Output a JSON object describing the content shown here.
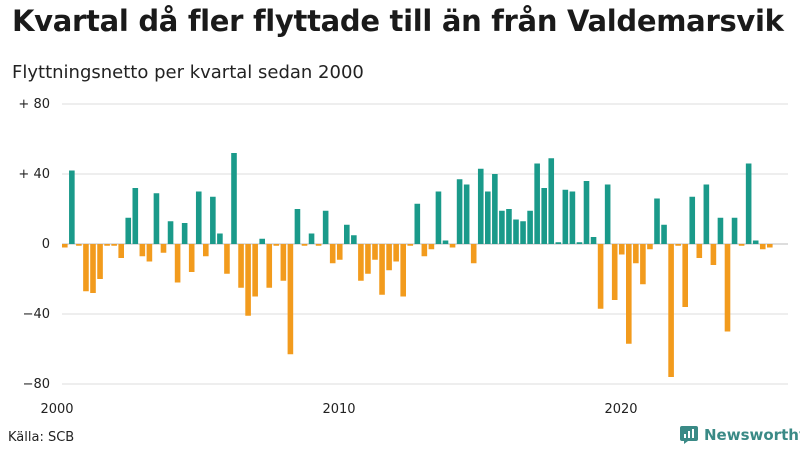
{
  "title": "Kvartal då fler flyttade till än från Valdemarsvik",
  "subtitle": "Flyttningsnetto per kvartal sedan 2000",
  "source": "Källa: SCB",
  "brand": "Newsworthy",
  "colors": {
    "positive": "#1a9a8a",
    "negative": "#f29b1d",
    "grid": "#dddddd",
    "brand": "#3a8a86"
  },
  "chart_data": {
    "type": "bar",
    "title": "Kvartal då fler flyttade till än från Valdemarsvik",
    "subtitle": "Flyttningsnetto per kvartal sedan 2000",
    "x_start": "2000 Q1",
    "ylim": [
      -80,
      80
    ],
    "y_ticks": [
      {
        "value": 80,
        "label": "+ 80"
      },
      {
        "value": 40,
        "label": "+ 40"
      },
      {
        "value": 0,
        "label": "0"
      },
      {
        "value": -40,
        "label": "−40"
      },
      {
        "value": -80,
        "label": "−80"
      }
    ],
    "x_ticks": [
      {
        "year": 2000,
        "label": "2000"
      },
      {
        "year": 2010,
        "label": "2010"
      },
      {
        "year": 2020,
        "label": "2020"
      }
    ],
    "grid": true,
    "values": [
      -2,
      42,
      -1,
      -27,
      -28,
      -20,
      -1,
      -1,
      -8,
      15,
      32,
      -7,
      -10,
      29,
      -5,
      13,
      -22,
      12,
      -16,
      30,
      -7,
      27,
      6,
      -17,
      52,
      -25,
      -41,
      -30,
      3,
      -25,
      -1,
      -21,
      -63,
      20,
      -1,
      6,
      -1,
      19,
      -11,
      -9,
      11,
      5,
      -21,
      -17,
      -9,
      -29,
      -15,
      -10,
      -30,
      -1,
      23,
      -7,
      -3,
      30,
      2,
      -2,
      37,
      34,
      -11,
      43,
      30,
      40,
      19,
      20,
      14,
      13,
      19,
      46,
      32,
      49,
      1,
      31,
      30,
      1,
      36,
      4,
      -37,
      34,
      -32,
      -6,
      -57,
      -11,
      -23,
      -3,
      26,
      11,
      -76,
      -1,
      -36,
      27,
      -8,
      34,
      -12,
      15,
      -50,
      15,
      -1,
      46,
      2,
      -3,
      -2
    ]
  }
}
